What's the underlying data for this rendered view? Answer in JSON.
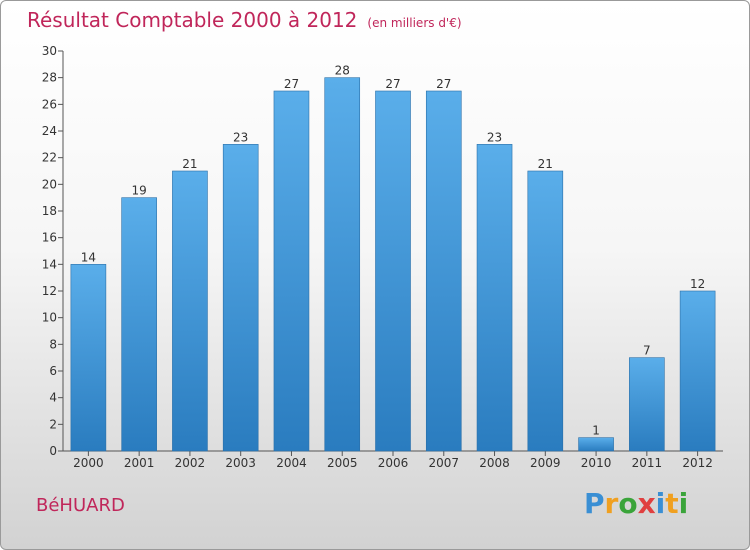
{
  "header": {
    "title": "Résultat Comptable 2000 à 2012",
    "subtitle": "(en milliers d'€)"
  },
  "commune": "BéHUARD",
  "logo": {
    "letters": [
      "P",
      "r",
      "o",
      "x",
      "i",
      "t",
      "i"
    ],
    "colors": [
      "#3a8fd4",
      "#f0a020",
      "#3aa43a",
      "#e04040",
      "#3a8fd4",
      "#f0a020",
      "#3aa43a"
    ]
  },
  "colors": {
    "bar_light": "#5aaeea",
    "bar_dark": "#2a7cbf",
    "title": "#c0265a"
  },
  "chart_data": {
    "type": "bar",
    "title": "Résultat Comptable 2000 à 2012",
    "subtitle": "(en milliers d'€)",
    "categories": [
      "2000",
      "2001",
      "2002",
      "2003",
      "2004",
      "2005",
      "2006",
      "2007",
      "2008",
      "2009",
      "2010",
      "2011",
      "2012"
    ],
    "values": [
      14,
      19,
      21,
      23,
      27,
      28,
      27,
      27,
      23,
      21,
      1,
      7,
      12
    ],
    "xlabel": "",
    "ylabel": "",
    "ylim": [
      0,
      30
    ],
    "yticks": [
      0,
      2,
      4,
      6,
      8,
      10,
      12,
      14,
      16,
      18,
      20,
      22,
      24,
      26,
      28,
      30
    ],
    "grid": false,
    "data_labels": true
  }
}
